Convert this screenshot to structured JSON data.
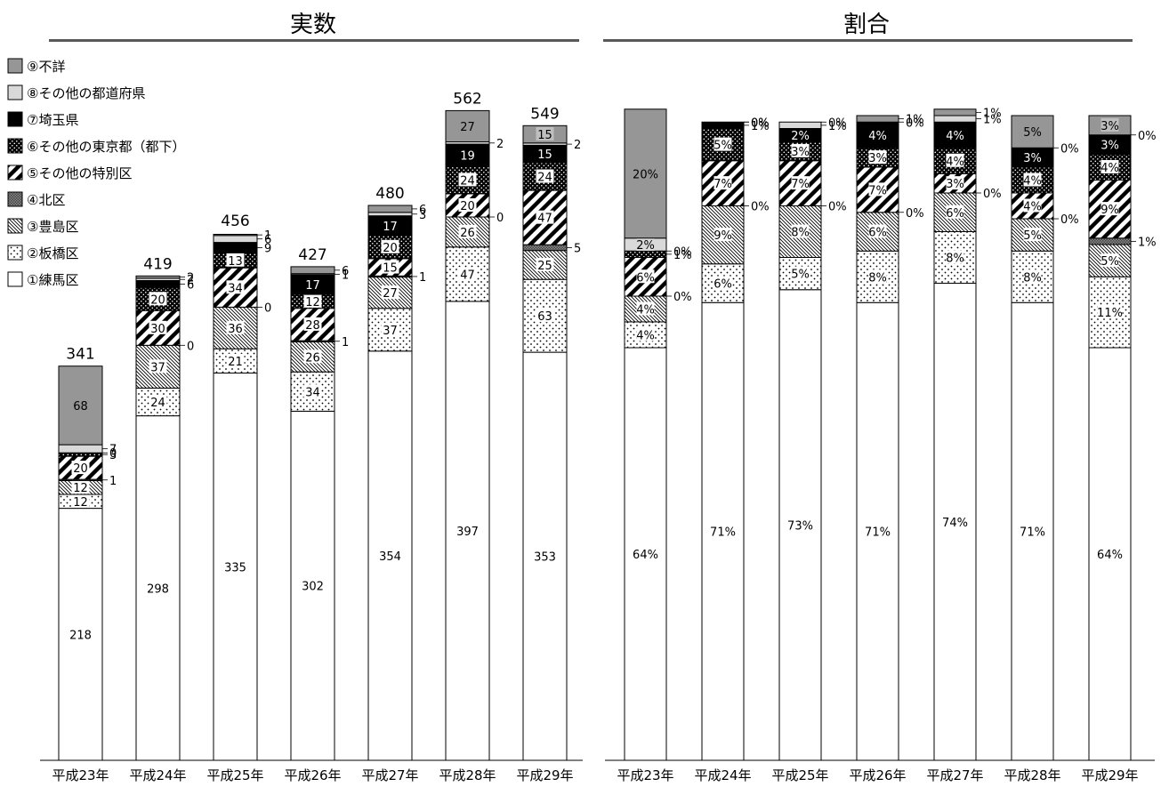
{
  "titles": {
    "left": "実数",
    "right": "割合"
  },
  "legend": [
    {
      "key": "s9",
      "label": "⑨不詳"
    },
    {
      "key": "s8",
      "label": "⑧その他の都道府県"
    },
    {
      "key": "s7",
      "label": "⑦埼玉県"
    },
    {
      "key": "s6",
      "label": "⑥その他の東京都（都下）"
    },
    {
      "key": "s5",
      "label": "⑤その他の特別区"
    },
    {
      "key": "s4",
      "label": "④北区"
    },
    {
      "key": "s3",
      "label": "③豊島区"
    },
    {
      "key": "s2",
      "label": "②板橋区"
    },
    {
      "key": "s1",
      "label": "①練馬区"
    }
  ],
  "chart_data": [
    {
      "type": "bar",
      "stacked": true,
      "title": "実数",
      "categories": [
        "平成23年",
        "平成24年",
        "平成25年",
        "平成26年",
        "平成27年",
        "平成28年",
        "平成29年"
      ],
      "totals": [
        341,
        419,
        456,
        427,
        480,
        562,
        549
      ],
      "series": [
        {
          "name": "①練馬区",
          "values": [
            218,
            298,
            335,
            302,
            354,
            397,
            353
          ]
        },
        {
          "name": "②板橋区",
          "values": [
            12,
            24,
            21,
            34,
            37,
            47,
            63
          ]
        },
        {
          "name": "③豊島区",
          "values": [
            12,
            37,
            36,
            26,
            27,
            26,
            25
          ]
        },
        {
          "name": "④北区",
          "values": [
            1,
            0,
            0,
            1,
            1,
            0,
            5
          ]
        },
        {
          "name": "⑤その他の特別区",
          "values": [
            20,
            30,
            34,
            28,
            15,
            20,
            47
          ]
        },
        {
          "name": "⑥その他の東京都（都下）",
          "values": [
            3,
            20,
            13,
            12,
            20,
            24,
            24
          ]
        },
        {
          "name": "⑦埼玉県",
          "values": [
            0,
            6,
            9,
            17,
            17,
            19,
            15
          ]
        },
        {
          "name": "⑧その他の都道府県",
          "values": [
            7,
            2,
            6,
            1,
            3,
            2,
            2
          ]
        },
        {
          "name": "⑨不詳",
          "values": [
            68,
            2,
            1,
            6,
            6,
            27,
            15
          ]
        }
      ],
      "ylim": [
        0,
        600
      ]
    },
    {
      "type": "bar",
      "stacked": true,
      "title": "割合",
      "categories": [
        "平成23年",
        "平成24年",
        "平成25年",
        "平成26年",
        "平成27年",
        "平成28年",
        "平成29年"
      ],
      "series": [
        {
          "name": "①練馬区",
          "values": [
            64,
            71,
            73,
            71,
            74,
            71,
            64
          ]
        },
        {
          "name": "②板橋区",
          "values": [
            4,
            6,
            5,
            8,
            8,
            8,
            11
          ]
        },
        {
          "name": "③豊島区",
          "values": [
            4,
            9,
            8,
            6,
            6,
            5,
            5
          ]
        },
        {
          "name": "④北区",
          "values": [
            0,
            0,
            0,
            0,
            0,
            0,
            1
          ]
        },
        {
          "name": "⑤その他の特別区",
          "values": [
            6,
            7,
            7,
            7,
            3,
            4,
            9
          ]
        },
        {
          "name": "⑥その他の東京都（都下）",
          "values": [
            1,
            5,
            3,
            3,
            4,
            4,
            4
          ]
        },
        {
          "name": "⑦埼玉県",
          "values": [
            0,
            1,
            2,
            4,
            4,
            3,
            3
          ]
        },
        {
          "name": "⑧その他の都道府県",
          "values": [
            2,
            0,
            1,
            0,
            1,
            0,
            0
          ]
        },
        {
          "name": "⑨不詳",
          "values": [
            20,
            0,
            0,
            1,
            1,
            5,
            3
          ]
        }
      ],
      "value_suffix": "%",
      "ylim": [
        0,
        100
      ]
    }
  ]
}
